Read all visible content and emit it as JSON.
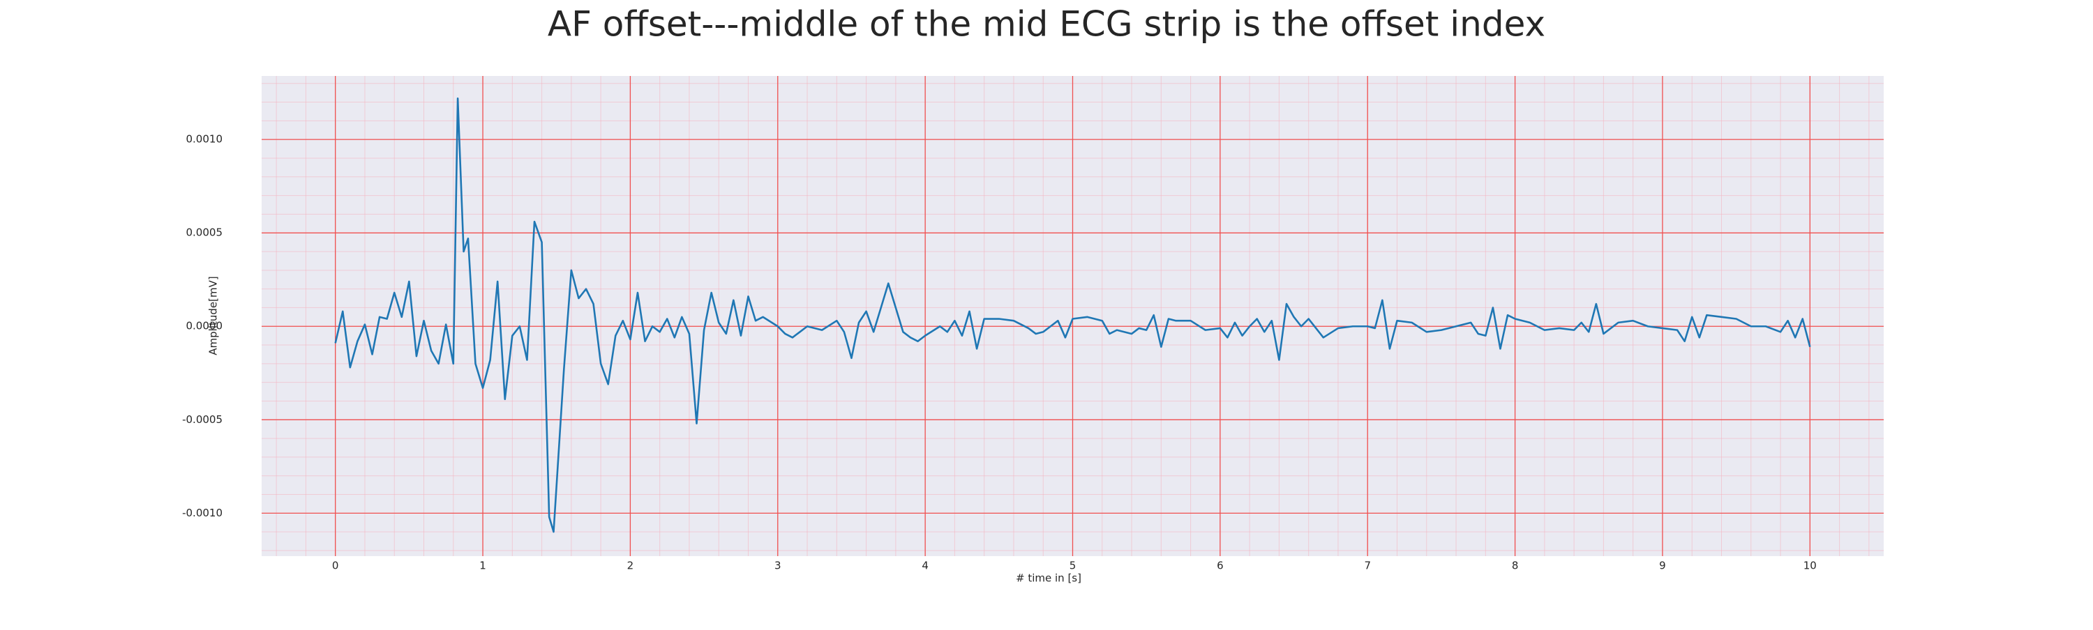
{
  "chart_data": {
    "type": "line",
    "title": "AF offset---middle of the mid ECG strip is the offset index",
    "xlabel": "# time in [s]",
    "ylabel": "Amplitude[mV]",
    "xlim": [
      -0.5,
      10.5
    ],
    "ylim": [
      -0.00123,
      0.00134
    ],
    "xticks": [
      0,
      1,
      2,
      3,
      4,
      5,
      6,
      7,
      8,
      9,
      10
    ],
    "yticks": [
      {
        "value": -0.001,
        "label": "-0.0010"
      },
      -0.0005,
      {
        "value": 0,
        "label": "0.0000"
      },
      0.0005,
      {
        "value": 0.001,
        "label": "0.0010"
      }
    ],
    "grid": true,
    "minor_grid": {
      "x": 0.2,
      "y": 0.0001
    },
    "x": [
      0,
      0.05,
      0.1,
      0.15,
      0.2,
      0.25,
      0.3,
      0.35,
      0.4,
      0.45,
      0.5,
      0.55,
      0.6,
      0.65,
      0.7,
      0.75,
      0.8,
      0.83,
      0.87,
      0.9,
      0.95,
      1.0,
      1.05,
      1.1,
      1.15,
      1.2,
      1.25,
      1.3,
      1.35,
      1.4,
      1.45,
      1.48,
      1.55,
      1.6,
      1.65,
      1.7,
      1.75,
      1.8,
      1.85,
      1.9,
      1.95,
      2.0,
      2.05,
      2.1,
      2.15,
      2.2,
      2.25,
      2.3,
      2.35,
      2.4,
      2.45,
      2.5,
      2.55,
      2.6,
      2.65,
      2.7,
      2.75,
      2.8,
      2.85,
      2.9,
      3.0,
      3.05,
      3.1,
      3.15,
      3.2,
      3.3,
      3.4,
      3.45,
      3.5,
      3.55,
      3.6,
      3.65,
      3.7,
      3.75,
      3.8,
      3.85,
      3.9,
      3.95,
      4.0,
      4.1,
      4.15,
      4.2,
      4.25,
      4.3,
      4.35,
      4.4,
      4.5,
      4.6,
      4.7,
      4.75,
      4.8,
      4.85,
      4.9,
      4.95,
      5.0,
      5.1,
      5.2,
      5.25,
      5.3,
      5.4,
      5.45,
      5.5,
      5.55,
      5.6,
      5.65,
      5.7,
      5.8,
      5.9,
      6.0,
      6.05,
      6.1,
      6.15,
      6.2,
      6.25,
      6.3,
      6.35,
      6.4,
      6.45,
      6.5,
      6.55,
      6.6,
      6.7,
      6.8,
      6.9,
      7.0,
      7.05,
      7.1,
      7.15,
      7.2,
      7.3,
      7.4,
      7.5,
      7.6,
      7.7,
      7.75,
      7.8,
      7.85,
      7.9,
      7.95,
      8.0,
      8.1,
      8.2,
      8.3,
      8.4,
      8.45,
      8.5,
      8.55,
      8.6,
      8.7,
      8.8,
      8.9,
      9.0,
      9.1,
      9.15,
      9.2,
      9.25,
      9.3,
      9.4,
      9.5,
      9.6,
      9.7,
      9.8,
      9.85,
      9.9,
      9.95,
      10.0
    ],
    "series": [
      {
        "color": "#1f77b4",
        "values": [
          -9e-05,
          8e-05,
          -0.00022,
          -8e-05,
          1e-05,
          -0.00015,
          5e-05,
          4e-05,
          0.00018,
          5e-05,
          0.00024,
          -0.00016,
          3e-05,
          -0.00013,
          -0.0002,
          1e-05,
          -0.0002,
          0.00122,
          0.0004,
          0.00047,
          -0.0002,
          -0.00033,
          -0.00018,
          0.00024,
          -0.00039,
          -5e-05,
          0,
          -0.00018,
          0.00056,
          0.00045,
          -0.00102,
          -0.0011,
          -0.00023,
          0.0003,
          0.00015,
          0.0002,
          0.00012,
          -0.0002,
          -0.00031,
          -5e-05,
          3e-05,
          -7e-05,
          0.00018,
          -8e-05,
          0,
          -3e-05,
          4e-05,
          -6e-05,
          5e-05,
          -4e-05,
          -0.00052,
          -2e-05,
          0.00018,
          2e-05,
          -4e-05,
          0.00014,
          -5e-05,
          0.00016,
          3e-05,
          5e-05,
          0,
          -4e-05,
          -6e-05,
          -3e-05,
          0,
          -2e-05,
          3e-05,
          -3e-05,
          -0.00017,
          2e-05,
          8e-05,
          -3e-05,
          0.0001,
          0.00023,
          0.0001,
          -3e-05,
          -6e-05,
          -8e-05,
          -5e-05,
          0,
          -3e-05,
          3e-05,
          -5e-05,
          8e-05,
          -0.00012,
          4e-05,
          4e-05,
          3e-05,
          -1e-05,
          -4e-05,
          -3e-05,
          0,
          3e-05,
          -6e-05,
          4e-05,
          5e-05,
          3e-05,
          -4e-05,
          -2e-05,
          -4e-05,
          -1e-05,
          -2e-05,
          6e-05,
          -0.00011,
          4e-05,
          3e-05,
          3e-05,
          -2e-05,
          -1e-05,
          -6e-05,
          2e-05,
          -5e-05,
          0,
          4e-05,
          -3e-05,
          3e-05,
          -0.00018,
          0.00012,
          5e-05,
          0,
          4e-05,
          -6e-05,
          -1e-05,
          0,
          0,
          -1e-05,
          0.00014,
          -0.00012,
          3e-05,
          2e-05,
          -3e-05,
          -2e-05,
          0,
          2e-05,
          -4e-05,
          -5e-05,
          0.0001,
          -0.00012,
          6e-05,
          4e-05,
          2e-05,
          -2e-05,
          -1e-05,
          -2e-05,
          2e-05,
          -3e-05,
          0.00012,
          -4e-05,
          2e-05,
          3e-05,
          0,
          -1e-05,
          -2e-05,
          -8e-05,
          5e-05,
          -6e-05,
          6e-05,
          5e-05,
          4e-05,
          0,
          0,
          -3e-05,
          3e-05,
          -6e-05,
          4e-05,
          -0.00011
        ]
      }
    ]
  }
}
